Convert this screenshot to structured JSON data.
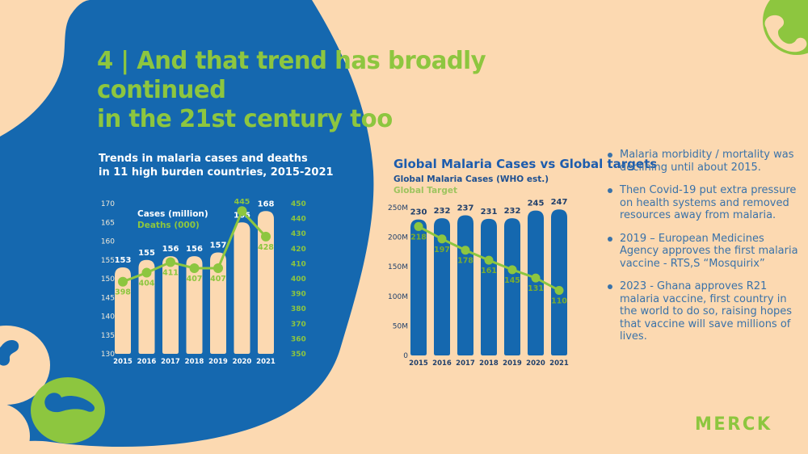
{
  "colors": {
    "blue": "#1568af",
    "peach": "#fcd9b1",
    "green": "#8dc63f",
    "navy": "#21406b",
    "cream_axis": "#f2ead9",
    "right_title_blue": "#1d5cad",
    "bullet_blue": "#3a72a9",
    "target_label_green": "#79ad30",
    "white": "#ffffff"
  },
  "icons": {
    "top_right": "phone-icon",
    "bottom_left": [
      "mosquito-blob-icon",
      "mosquito-circle-icon"
    ]
  },
  "title": {
    "line1": "4 | And that trend has broadly continued",
    "line2": "in the 21st century too"
  },
  "bullets": [
    "Malaria morbidity / mortality was declining until about 2015.",
    "Then Covid-19 put extra pressure on health systems and removed resources away from malaria.",
    "2019 – European Medicines Agency approves the first malaria vaccine - RTS,S “Mosquirix”",
    "2023 - Ghana approves R21 malaria vaccine, first country in the world to do so, raising hopes that vaccine will save millions of lives."
  ],
  "logo_text": "MERCK",
  "chart_data": [
    {
      "type": "bar",
      "title_line1": "Trends in malaria cases and deaths",
      "title_line2": "in 11 high burden countries, 2015-2021",
      "categories": [
        "2015",
        "2016",
        "2017",
        "2018",
        "2019",
        "2020",
        "2021"
      ],
      "series": [
        {
          "name": "Cases (million)",
          "type": "bar",
          "axis": "left",
          "values": [
            153,
            155,
            156,
            156,
            157,
            165,
            168
          ]
        },
        {
          "name": "Deaths (000)",
          "type": "line",
          "axis": "right",
          "values": [
            398,
            404,
            411,
            407,
            407,
            445,
            428
          ],
          "label_positions": [
            "below",
            "below",
            "below",
            "below",
            "below",
            "above",
            "below"
          ]
        }
      ],
      "left_axis": {
        "min": 130,
        "max": 170,
        "step": 5
      },
      "right_axis": {
        "min": 350,
        "max": 450,
        "step": 10
      },
      "grid": false,
      "legend_position": "inside-top-left"
    },
    {
      "type": "bar",
      "title": "Global Malaria Cases vs Global targets",
      "categories": [
        "2015",
        "2016",
        "2017",
        "2018",
        "2019",
        "2020",
        "2021"
      ],
      "series": [
        {
          "name": "Global Malaria Cases (WHO est.)",
          "type": "bar",
          "values": [
            230,
            232,
            237,
            231,
            232,
            245,
            247
          ]
        },
        {
          "name": "Global Target",
          "type": "line",
          "values": [
            218,
            197,
            178,
            161,
            145,
            131,
            110
          ]
        }
      ],
      "y_axis": {
        "min": 0,
        "max": 250,
        "step": 50,
        "tick_labels": [
          "0",
          "50M",
          "100M",
          "150M",
          "200M",
          "250M"
        ]
      },
      "grid": false,
      "legend_position": "above-chart"
    }
  ]
}
